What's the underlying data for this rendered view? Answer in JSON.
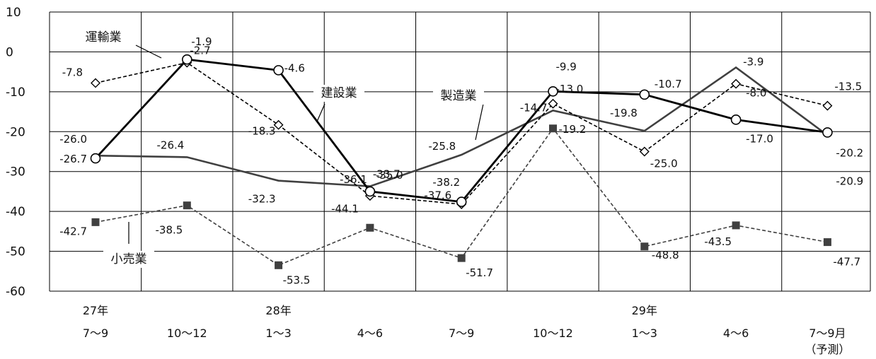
{
  "chart_data": {
    "type": "line",
    "x_labels": [
      [
        "27年",
        "7～9"
      ],
      [
        "",
        "10～12"
      ],
      [
        "28年",
        "1～3"
      ],
      [
        "",
        "4～6"
      ],
      [
        "",
        "7～9"
      ],
      [
        "",
        "10～12"
      ],
      [
        "29年",
        "1～3"
      ],
      [
        "",
        "4～6"
      ],
      [
        "",
        "7～9月",
        "（予測）"
      ]
    ],
    "ylim": [
      -60,
      10
    ],
    "yticks": [
      10,
      0,
      -10,
      -20,
      -30,
      -40,
      -50,
      -60
    ],
    "grid": true,
    "series": [
      {
        "name": "運輸業",
        "values": [
          -7.8,
          -2.7,
          -18.3,
          -36.1,
          -38.2,
          -13.0,
          -25.0,
          -8.0,
          -13.5
        ],
        "labels": [
          "-7.8",
          "-2.7",
          "-18.3",
          "-36.1",
          "-38.2",
          "-13.0",
          "-25.0",
          "-8.0",
          "-13.5"
        ],
        "style": "dashed",
        "marker": "diamond",
        "color": "#000000"
      },
      {
        "name": "建設業",
        "values": [
          -26.7,
          -1.9,
          -4.6,
          -35.0,
          -37.6,
          -9.9,
          -10.7,
          -17.0,
          -20.2
        ],
        "labels": [
          "-26.7",
          "-1.9",
          "-4.6",
          "-35.0",
          "-37.6",
          "-9.9",
          "-10.7",
          "-17.0",
          "-20.2"
        ],
        "style": "solid",
        "marker": "circle",
        "color": "#000000"
      },
      {
        "name": "製造業",
        "values": [
          -26.0,
          -26.4,
          -32.3,
          -33.7,
          -25.8,
          -14.7,
          -19.8,
          -3.9,
          -20.9
        ],
        "labels": [
          "-26.0",
          "-26.4",
          "-32.3",
          "-33.7",
          "-25.8",
          "-14.7",
          "-19.8",
          "-3.9",
          "-20.9"
        ],
        "style": "solid",
        "marker": "none",
        "color": "#404040"
      },
      {
        "name": "小売業",
        "values": [
          -42.7,
          -38.5,
          -53.5,
          -44.1,
          -51.7,
          -19.2,
          -48.8,
          -43.5,
          -47.7
        ],
        "labels": [
          "-42.7",
          "-38.5",
          "-53.5",
          "-44.1",
          "-51.7",
          "-19.2",
          "-48.8",
          "-43.5",
          "-47.7"
        ],
        "style": "dashed",
        "marker": "square",
        "color": "#404040"
      }
    ]
  }
}
